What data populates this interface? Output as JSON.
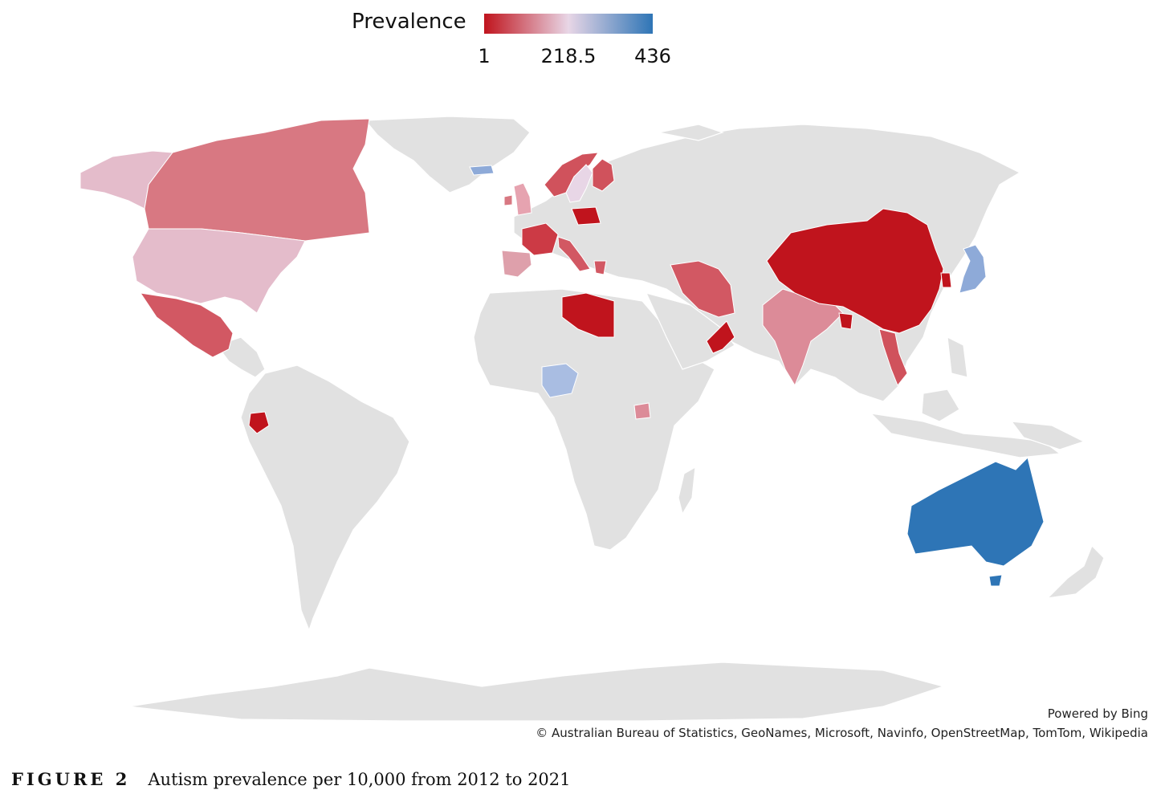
{
  "legend": {
    "title": "Prevalence",
    "min_label": "1",
    "mid_label": "218.5",
    "max_label": "436",
    "min": 1,
    "mid": 218.5,
    "max": 436,
    "color_low": "#c0141d",
    "color_mid": "#e8d6e6",
    "color_high": "#2e75b6",
    "no_data_color": "#e1e1e1"
  },
  "map": {
    "highlighted_regions": [
      {
        "region": "Canada",
        "color": "#d87882"
      },
      {
        "region": "Alaska (USA)",
        "color": "#e4bccb"
      },
      {
        "region": "United States",
        "color": "#e4bccb"
      },
      {
        "region": "Mexico",
        "color": "#d25863"
      },
      {
        "region": "Ecuador",
        "color": "#c0141d"
      },
      {
        "region": "Iceland",
        "color": "#8eaad8"
      },
      {
        "region": "Norway",
        "color": "#d0525c"
      },
      {
        "region": "Sweden",
        "color": "#e8d6e6"
      },
      {
        "region": "Finland",
        "color": "#d0525c"
      },
      {
        "region": "United Kingdom",
        "color": "#e6a3b0"
      },
      {
        "region": "Ireland",
        "color": "#d87882"
      },
      {
        "region": "France",
        "color": "#cc3a45"
      },
      {
        "region": "Spain",
        "color": "#dea0ab"
      },
      {
        "region": "Italy",
        "color": "#d25863"
      },
      {
        "region": "Poland",
        "color": "#c0141d"
      },
      {
        "region": "Greece",
        "color": "#d25863"
      },
      {
        "region": "Libya",
        "color": "#c0141d"
      },
      {
        "region": "Iran",
        "color": "#d25863"
      },
      {
        "region": "Oman",
        "color": "#c0141d"
      },
      {
        "region": "India",
        "color": "#dc8b98"
      },
      {
        "region": "Bangladesh",
        "color": "#c0141d"
      },
      {
        "region": "China",
        "color": "#c0141d"
      },
      {
        "region": "South Korea",
        "color": "#c0141d"
      },
      {
        "region": "Japan",
        "color": "#8eaad8"
      },
      {
        "region": "Vietnam",
        "color": "#d0525c"
      },
      {
        "region": "Nigeria",
        "color": "#a9bde2"
      },
      {
        "region": "Uganda",
        "color": "#dc8b98"
      },
      {
        "region": "Australia",
        "color": "#2e75b6"
      }
    ]
  },
  "credits": {
    "powered_by": "Powered by Bing",
    "attribution": "© Australian Bureau of Statistics, GeoNames, Microsoft, Navinfo, OpenStreetMap, TomTom, Wikipedia"
  },
  "caption": {
    "figure_label": "FIGURE 2",
    "text": "Autism prevalence per 10,000 from 2012 to 2021"
  }
}
